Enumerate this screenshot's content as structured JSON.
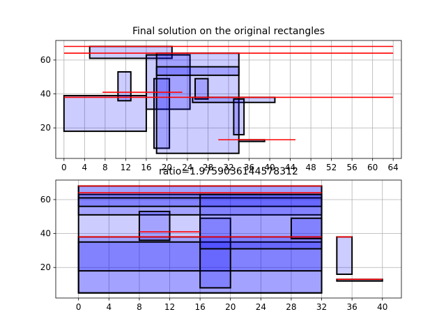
{
  "chart_data": [
    {
      "type": "rectangles",
      "title": "Final solution on the original rectangles",
      "xlim": [
        -1.6,
        65.6
      ],
      "ylim": [
        2,
        71.5
      ],
      "xticks": [
        0,
        4,
        8,
        12,
        16,
        20,
        24,
        28,
        32,
        36,
        40,
        44,
        48,
        52,
        56,
        60,
        64
      ],
      "yticks": [
        20,
        40,
        60
      ],
      "grid": true,
      "rectangles": [
        {
          "x0": 0,
          "y0": 18,
          "x1": 16,
          "y1": 39
        },
        {
          "x0": 5,
          "y0": 61,
          "x1": 21,
          "y1": 68
        },
        {
          "x0": 10.5,
          "y0": 36,
          "x1": 13,
          "y1": 53
        },
        {
          "x0": 16,
          "y0": 31,
          "x1": 24.5,
          "y1": 63
        },
        {
          "x0": 17.5,
          "y0": 8,
          "x1": 20.5,
          "y1": 49
        },
        {
          "x0": 18,
          "y0": 5,
          "x1": 34,
          "y1": 64
        },
        {
          "x0": 18,
          "y0": 51,
          "x1": 34,
          "y1": 56
        },
        {
          "x0": 25.5,
          "y0": 37,
          "x1": 28,
          "y1": 49
        },
        {
          "x0": 25,
          "y0": 35,
          "x1": 41,
          "y1": 38
        },
        {
          "x0": 33,
          "y0": 16,
          "x1": 35,
          "y1": 37
        },
        {
          "x0": 34,
          "y0": 12,
          "x1": 39,
          "y1": 13
        }
      ],
      "red_segments": [
        {
          "x0": 0,
          "x1": 64,
          "y": 68
        },
        {
          "x0": 0,
          "x1": 64,
          "y": 64
        },
        {
          "x0": 7.5,
          "x1": 23,
          "y": 41
        },
        {
          "x0": 0,
          "x1": 64,
          "y": 38
        },
        {
          "x0": 30,
          "x1": 45,
          "y": 13
        }
      ]
    },
    {
      "type": "rectangles",
      "title": "ratio=1.9759036144578312",
      "xlim": [
        -3,
        42.5
      ],
      "ylim": [
        2,
        71.5
      ],
      "xticks": [
        0,
        4,
        8,
        12,
        16,
        20,
        24,
        28,
        32,
        36,
        40
      ],
      "yticks": [
        20,
        40,
        60
      ],
      "grid": true,
      "rectangles": [
        {
          "x0": 0,
          "y0": 5,
          "x1": 32,
          "y1": 68
        },
        {
          "x0": 0,
          "y0": 5,
          "x1": 32,
          "y1": 38
        },
        {
          "x0": 0,
          "y0": 18,
          "x1": 32,
          "y1": 35
        },
        {
          "x0": 0,
          "y0": 51,
          "x1": 32,
          "y1": 63
        },
        {
          "x0": 0,
          "y0": 56,
          "x1": 32,
          "y1": 61
        },
        {
          "x0": 0,
          "y0": 61,
          "x1": 32,
          "y1": 68
        },
        {
          "x0": 8,
          "y0": 36,
          "x1": 12,
          "y1": 53
        },
        {
          "x0": 16,
          "y0": 8,
          "x1": 20,
          "y1": 49
        },
        {
          "x0": 16,
          "y0": 31,
          "x1": 32,
          "y1": 63
        },
        {
          "x0": 28,
          "y0": 37,
          "x1": 32,
          "y1": 49
        },
        {
          "x0": 34,
          "y0": 16,
          "x1": 36,
          "y1": 38
        },
        {
          "x0": 34,
          "y0": 12,
          "x1": 40,
          "y1": 13
        }
      ],
      "red_segments": [
        {
          "x0": 0,
          "x1": 32,
          "y": 68
        },
        {
          "x0": 0,
          "x1": 32,
          "y": 64
        },
        {
          "x0": 8,
          "x1": 16,
          "y": 41
        },
        {
          "x0": 0,
          "x1": 32,
          "y": 38
        },
        {
          "x0": 34,
          "x1": 36,
          "y": 38
        },
        {
          "x0": 34,
          "x1": 40,
          "y": 13
        }
      ]
    }
  ],
  "colors": {
    "rect_fill": "#0000ff",
    "rect_fill_opacity": 0.2,
    "rect_edge": "#000000",
    "segment": "#ff0000",
    "grid": "#b0b0b0",
    "axes": "#000000"
  }
}
